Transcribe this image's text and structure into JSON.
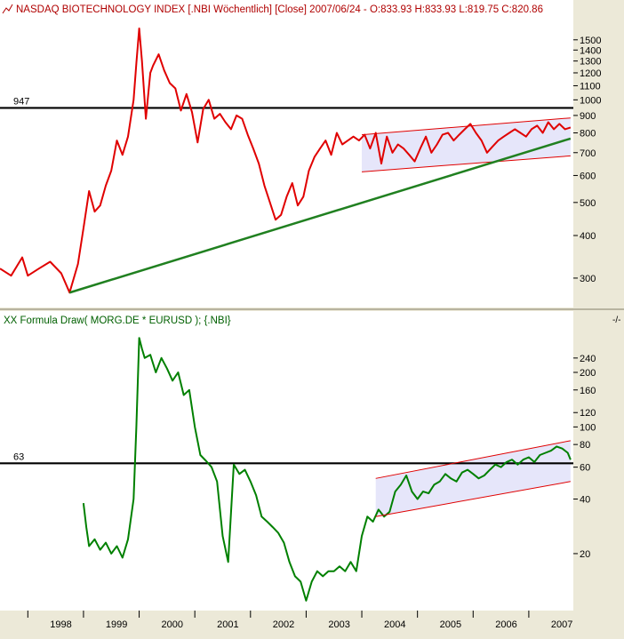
{
  "colors": {
    "background": "#ece9d8",
    "plot_bg": "#ffffff",
    "price_line": "#e00000",
    "formula_line": "#008000",
    "trend_line": "#208020",
    "channel_line": "#e00000",
    "channel_fill": "#e6e6fa",
    "level_line": "#000000",
    "header_top_text": "#b00000",
    "header_bottom_text": "#006000"
  },
  "chart_data": [
    {
      "type": "line",
      "header": "NASDAQ BIOTECHNOLOGY INDEX [.NBI  Wöchentlich] [Close] 2007/06/24 - O:833.93 H:833.93 L:819.75 C:820.86",
      "header_icon": "line-chart-icon",
      "y_scale": "log",
      "ylim": [
        255,
        1720
      ],
      "xlim": [
        1997.5,
        2007.8
      ],
      "y_tick_labels": [
        "1500",
        "1400",
        "1300",
        "1200",
        "1100",
        "1000",
        "900",
        "800",
        "700",
        "600",
        "500",
        "400",
        "300"
      ],
      "y_tick_values": [
        1500,
        1400,
        1300,
        1200,
        1100,
        1000,
        900,
        800,
        700,
        600,
        500,
        400,
        300
      ],
      "horizontal_level": {
        "value": 947,
        "label": "947"
      },
      "trendline": {
        "x": [
          1998.75,
          2007.75
        ],
        "y": [
          272,
          770
        ]
      },
      "channel": {
        "upper": {
          "x": [
            2004.0,
            2007.75
          ],
          "y": [
            790,
            885
          ]
        },
        "lower": {
          "x": [
            2004.0,
            2007.75
          ],
          "y": [
            615,
            685
          ]
        }
      },
      "series": [
        {
          "x": [
            1997.5,
            1997.7,
            1997.9,
            1998.0,
            1998.2,
            1998.4,
            1998.6,
            1998.75,
            1998.9,
            1999.0,
            1999.1,
            1999.2,
            1999.3,
            1999.4,
            1999.5,
            1999.6,
            1999.7,
            1999.8,
            1999.9,
            1999.95,
            2000.0,
            2000.05,
            2000.12,
            2000.2,
            2000.25,
            2000.35,
            2000.45,
            2000.55,
            2000.65,
            2000.75,
            2000.85,
            2000.95,
            2001.05,
            2001.15,
            2001.25,
            2001.35,
            2001.45,
            2001.55,
            2001.65,
            2001.75,
            2001.85,
            2001.95,
            2002.05,
            2002.15,
            2002.25,
            2002.35,
            2002.45,
            2002.55,
            2002.65,
            2002.75,
            2002.85,
            2002.95,
            2003.05,
            2003.15,
            2003.25,
            2003.35,
            2003.45,
            2003.55,
            2003.65,
            2003.75,
            2003.85,
            2003.95,
            2004.05,
            2004.15,
            2004.25,
            2004.35,
            2004.45,
            2004.55,
            2004.65,
            2004.75,
            2004.85,
            2004.95,
            2005.05,
            2005.15,
            2005.25,
            2005.35,
            2005.45,
            2005.55,
            2005.65,
            2005.75,
            2005.85,
            2005.95,
            2006.05,
            2006.15,
            2006.25,
            2006.35,
            2006.45,
            2006.55,
            2006.65,
            2006.75,
            2006.85,
            2006.95,
            2007.05,
            2007.15,
            2007.25,
            2007.35,
            2007.45,
            2007.55,
            2007.65,
            2007.75
          ],
          "y": [
            320,
            305,
            345,
            305,
            320,
            335,
            310,
            272,
            330,
            420,
            540,
            470,
            490,
            560,
            620,
            760,
            690,
            780,
            1000,
            1280,
            1620,
            1300,
            880,
            1200,
            1260,
            1360,
            1220,
            1120,
            1080,
            930,
            1040,
            920,
            750,
            940,
            1000,
            880,
            910,
            860,
            820,
            900,
            880,
            790,
            720,
            650,
            560,
            500,
            445,
            460,
            520,
            570,
            490,
            520,
            620,
            680,
            720,
            760,
            690,
            800,
            740,
            760,
            780,
            760,
            790,
            720,
            800,
            650,
            780,
            700,
            740,
            720,
            690,
            660,
            720,
            780,
            700,
            740,
            790,
            800,
            760,
            790,
            820,
            850,
            800,
            760,
            700,
            730,
            760,
            780,
            800,
            820,
            800,
            780,
            820,
            840,
            800,
            860,
            820,
            850,
            820,
            830
          ]
        }
      ]
    },
    {
      "type": "line",
      "header": "XX Formula Draw( MORG.DE * EURUSD ); {.NBI}",
      "y_scale": "log",
      "ylim": [
        10.5,
        340
      ],
      "xlim": [
        1997.5,
        2007.8
      ],
      "y_tick_labels": [
        "240",
        "200",
        "160",
        "120",
        "100",
        "80",
        "60",
        "40",
        "20"
      ],
      "y_tick_values": [
        240,
        200,
        160,
        120,
        100,
        80,
        60,
        40,
        20
      ],
      "horizontal_level": {
        "value": 63,
        "label": "63"
      },
      "channel": {
        "upper": {
          "x": [
            2004.25,
            2007.75
          ],
          "y": [
            52,
            84
          ]
        },
        "lower": {
          "x": [
            2004.25,
            2007.75
          ],
          "y": [
            32,
            50
          ]
        }
      },
      "series": [
        {
          "x": [
            1999.0,
            1999.05,
            1999.1,
            1999.2,
            1999.3,
            1999.4,
            1999.5,
            1999.6,
            1999.7,
            1999.8,
            1999.9,
            1999.95,
            2000.0,
            2000.05,
            2000.1,
            2000.2,
            2000.3,
            2000.4,
            2000.5,
            2000.6,
            2000.7,
            2000.8,
            2000.9,
            2001.0,
            2001.1,
            2001.2,
            2001.3,
            2001.4,
            2001.5,
            2001.6,
            2001.7,
            2001.8,
            2001.9,
            2002.0,
            2002.1,
            2002.2,
            2002.3,
            2002.4,
            2002.5,
            2002.6,
            2002.7,
            2002.8,
            2002.9,
            2003.0,
            2003.1,
            2003.2,
            2003.3,
            2003.4,
            2003.5,
            2003.6,
            2003.7,
            2003.8,
            2003.9,
            2004.0,
            2004.1,
            2004.2,
            2004.3,
            2004.4,
            2004.5,
            2004.6,
            2004.7,
            2004.8,
            2004.9,
            2005.0,
            2005.1,
            2005.2,
            2005.3,
            2005.4,
            2005.5,
            2005.6,
            2005.7,
            2005.8,
            2005.9,
            2006.0,
            2006.1,
            2006.2,
            2006.3,
            2006.4,
            2006.5,
            2006.6,
            2006.7,
            2006.8,
            2006.9,
            2007.0,
            2007.1,
            2007.2,
            2007.3,
            2007.4,
            2007.5,
            2007.6,
            2007.7,
            2007.75
          ],
          "y": [
            38,
            28,
            22,
            24,
            21,
            23,
            20,
            22,
            19,
            24,
            40,
            100,
            310,
            270,
            240,
            250,
            200,
            240,
            210,
            180,
            200,
            150,
            160,
            100,
            70,
            65,
            60,
            50,
            25,
            18,
            62,
            55,
            58,
            50,
            42,
            32,
            30,
            28,
            26,
            23,
            18,
            15,
            14,
            11,
            14,
            16,
            15,
            16,
            16,
            17,
            16,
            18,
            16,
            25,
            32,
            30,
            35,
            32,
            34,
            44,
            48,
            54,
            44,
            40,
            44,
            43,
            48,
            50,
            55,
            52,
            50,
            56,
            58,
            55,
            52,
            54,
            58,
            62,
            60,
            64,
            66,
            62,
            66,
            68,
            64,
            70,
            72,
            74,
            78,
            76,
            72,
            66
          ]
        }
      ]
    }
  ],
  "x_axis": {
    "labels": [
      "1998",
      "1999",
      "2000",
      "2001",
      "2002",
      "2003",
      "2004",
      "2005",
      "2006",
      "2007"
    ],
    "values": [
      1998,
      1999,
      2000,
      2001,
      2002,
      2003,
      2004,
      2005,
      2006,
      2007
    ]
  },
  "corner_label": "-/-"
}
